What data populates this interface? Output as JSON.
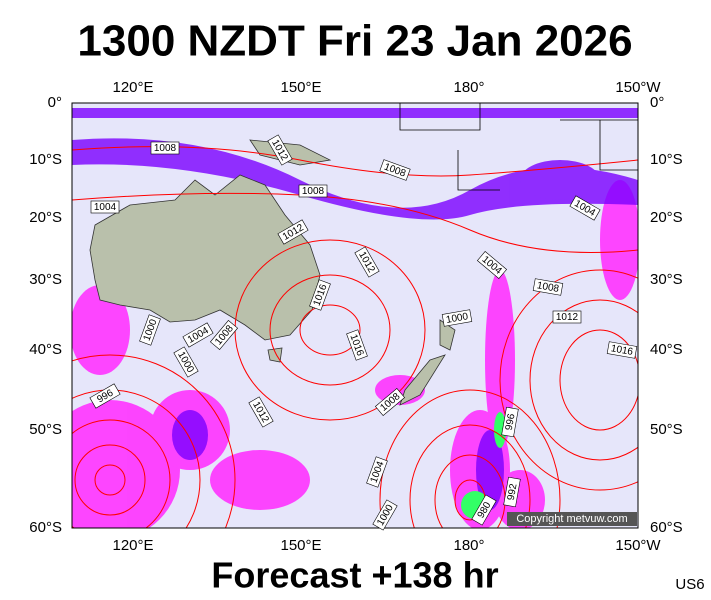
{
  "header": {
    "title": "1300 NZDT Fri 23 Jan 2026"
  },
  "map": {
    "lon_labels": [
      "120°E",
      "150°E",
      "180°",
      "150°W"
    ],
    "lat_labels": [
      "0°",
      "10°S",
      "20°S",
      "30°S",
      "40°S",
      "50°S",
      "60°S"
    ],
    "isobar_labels": [
      1008,
      1012,
      1008,
      1008,
      1004,
      1012,
      1004,
      1012,
      1004,
      1008,
      1016,
      1000,
      1012,
      1000,
      1004,
      1008,
      1016,
      1016,
      1000,
      996,
      1008,
      1012,
      996,
      1004,
      992,
      980,
      1000
    ],
    "copyright": "Copyright metvuw.com"
  },
  "footer": {
    "forecast": "Forecast +138 hr",
    "code": "US6"
  }
}
